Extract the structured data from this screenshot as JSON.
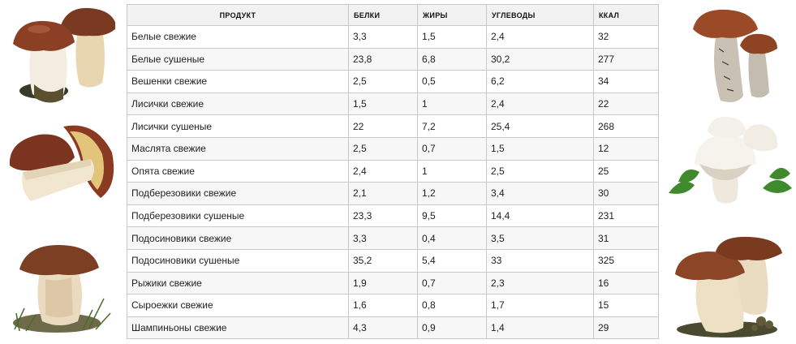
{
  "table": {
    "headers": [
      "ПРОДУКТ",
      "БЕЛКИ",
      "ЖИРЫ",
      "УГЛЕВОДЫ",
      "ККАЛ"
    ],
    "rows": [
      [
        "Белые свежие",
        "3,3",
        "1,5",
        "2,4",
        "32"
      ],
      [
        "Белые сушеные",
        "23,8",
        "6,8",
        "30,2",
        "277"
      ],
      [
        "Вешенки свежие",
        "2,5",
        "0,5",
        "6,2",
        "34"
      ],
      [
        "Лисички свежие",
        "1,5",
        "1",
        "2,4",
        "22"
      ],
      [
        "Лисички сушеные",
        "22",
        "7,2",
        "25,4",
        "268"
      ],
      [
        "Маслята свежие",
        "2,5",
        "0,7",
        "1,5",
        "12"
      ],
      [
        "Опята свежие",
        "2,4",
        "1",
        "2,5",
        "25"
      ],
      [
        "Подберезовики свежие",
        "2,1",
        "1,2",
        "3,4",
        "30"
      ],
      [
        "Подберезовики сушеные",
        "23,3",
        "9,5",
        "14,4",
        "231"
      ],
      [
        "Подосиновики свежие",
        "3,3",
        "0,4",
        "3,5",
        "31"
      ],
      [
        "Подосиновики сушеные",
        "35,2",
        "5,4",
        "33",
        "325"
      ],
      [
        "Рыжики свежие",
        "1,9",
        "0,7",
        "2,3",
        "16"
      ],
      [
        "Сыроежки свежие",
        "1,6",
        "0,8",
        "1,7",
        "15"
      ],
      [
        "Шампиньоны свежие",
        "4,3",
        "0,9",
        "1,4",
        "29"
      ]
    ]
  },
  "illustrations": [
    {
      "name": "porcini-pair-illustration"
    },
    {
      "name": "porcini-halved-illustration"
    },
    {
      "name": "porcini-with-grass-illustration"
    },
    {
      "name": "boletus-pair-illustration"
    },
    {
      "name": "champignons-with-parsley-illustration"
    },
    {
      "name": "porcini-in-moss-illustration"
    }
  ]
}
